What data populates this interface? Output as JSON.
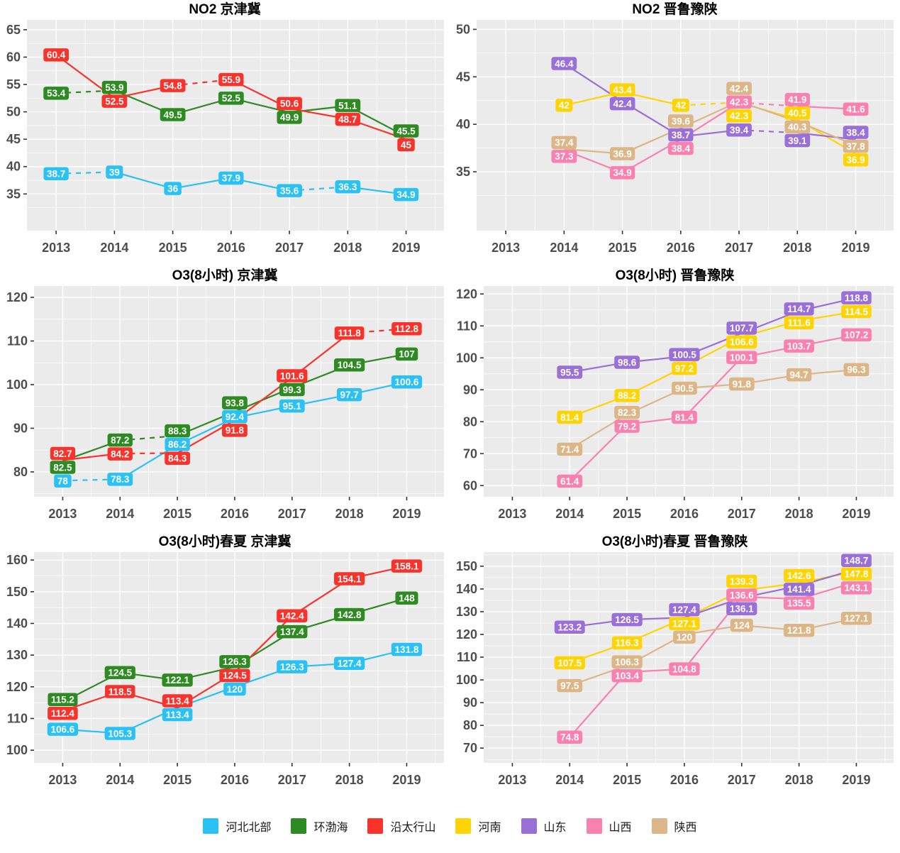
{
  "legend": {
    "items": [
      {
        "label": "河北北部",
        "slug": "hebei-north",
        "color": "#2AC2F5"
      },
      {
        "label": "环渤海",
        "slug": "huanbohai",
        "color": "#2E8B22"
      },
      {
        "label": "沿太行山",
        "slug": "yan-taihangshan",
        "color": "#F8332C"
      },
      {
        "label": "河南",
        "slug": "henan",
        "color": "#FFD404"
      },
      {
        "label": "山东",
        "slug": "shandong",
        "color": "#9A6FD8"
      },
      {
        "label": "山西",
        "slug": "shanxi",
        "color": "#FA80AF"
      },
      {
        "label": "陕西",
        "slug": "shaanxi",
        "color": "#DDB687"
      }
    ]
  },
  "chart_data": [
    {
      "type": "line",
      "title": "NO2 京津冀",
      "x": [
        2013,
        2014,
        2015,
        2016,
        2017,
        2018,
        2019
      ],
      "yticks": [
        35,
        40,
        45,
        50,
        55,
        60,
        65
      ],
      "ylim": [
        28.3,
        66.8
      ],
      "grid": true,
      "series": [
        {
          "name": "河北北部",
          "values": [
            38.7,
            39,
            36,
            37.9,
            35.6,
            36.3,
            34.9
          ],
          "dashed_segments": [
            0,
            4
          ]
        },
        {
          "name": "环渤海",
          "values": [
            53.4,
            53.9,
            49.5,
            52.5,
            49.9,
            51.1,
            45.5
          ],
          "dashed_segments": [
            0
          ]
        },
        {
          "name": "沿太行山",
          "values": [
            60.4,
            52.5,
            54.8,
            55.9,
            50.6,
            48.7,
            45
          ],
          "dashed_segments": [
            2
          ]
        }
      ]
    },
    {
      "type": "line",
      "title": "NO2 晋鲁豫陕",
      "x": [
        2013,
        2014,
        2015,
        2016,
        2017,
        2018,
        2019
      ],
      "yticks": [
        35,
        40,
        45,
        50
      ],
      "ylim": [
        28.8,
        51.0
      ],
      "grid": true,
      "series": [
        {
          "name": "河南",
          "values": [
            null,
            42,
            43.4,
            42,
            42.3,
            40.5,
            36.9
          ],
          "dashed_segments": [
            3
          ]
        },
        {
          "name": "山东",
          "values": [
            null,
            46.4,
            42.4,
            38.7,
            39.4,
            39.1,
            38.4
          ],
          "dashed_segments": [
            4
          ]
        },
        {
          "name": "山西",
          "values": [
            null,
            37.3,
            34.9,
            38.4,
            42.3,
            41.9,
            41.6
          ],
          "dashed_segments": [
            4
          ]
        },
        {
          "name": "陕西",
          "values": [
            null,
            37.4,
            36.9,
            39.6,
            42.4,
            40.3,
            37.8
          ],
          "dashed_segments": []
        }
      ]
    },
    {
      "type": "line",
      "title": "O3(8小时) 京津冀",
      "x": [
        2013,
        2014,
        2015,
        2016,
        2017,
        2018,
        2019
      ],
      "yticks": [
        80,
        90,
        100,
        110,
        120
      ],
      "ylim": [
        74.3,
        122.6
      ],
      "grid": true,
      "series": [
        {
          "name": "河北北部",
          "values": [
            78,
            78.3,
            86.2,
            92.4,
            95.1,
            97.7,
            100.6
          ],
          "dashed_segments": [
            0
          ]
        },
        {
          "name": "环渤海",
          "values": [
            82.5,
            87.2,
            88.3,
            93.8,
            99.3,
            104.5,
            107
          ],
          "dashed_segments": [
            1
          ]
        },
        {
          "name": "沿太行山",
          "values": [
            82.7,
            84.2,
            84.3,
            91.8,
            101.6,
            111.8,
            112.8
          ],
          "dashed_segments": [
            1,
            5
          ]
        }
      ]
    },
    {
      "type": "line",
      "title": "O3(8小时) 晋鲁豫陕",
      "x": [
        2013,
        2014,
        2015,
        2016,
        2017,
        2018,
        2019
      ],
      "yticks": [
        60,
        70,
        80,
        90,
        100,
        110,
        120
      ],
      "ylim": [
        56.5,
        122.5
      ],
      "grid": true,
      "series": [
        {
          "name": "河南",
          "values": [
            null,
            81.4,
            88.2,
            97.2,
            106.6,
            111.6,
            114.5
          ],
          "dashed_segments": []
        },
        {
          "name": "山东",
          "values": [
            null,
            95.5,
            98.6,
            100.5,
            107.7,
            114.7,
            118.8
          ],
          "dashed_segments": []
        },
        {
          "name": "山西",
          "values": [
            null,
            61.4,
            79.2,
            81.4,
            100.1,
            103.7,
            107.2
          ],
          "dashed_segments": []
        },
        {
          "name": "陕西",
          "values": [
            null,
            71.4,
            82.3,
            90.5,
            91.8,
            94.7,
            96.3
          ],
          "dashed_segments": []
        }
      ]
    },
    {
      "type": "line",
      "title": "O3(8小时)春夏 京津冀",
      "x": [
        2013,
        2014,
        2015,
        2016,
        2017,
        2018,
        2019
      ],
      "yticks": [
        100,
        110,
        120,
        130,
        140,
        150,
        160
      ],
      "ylim": [
        96.0,
        162.5
      ],
      "grid": true,
      "series": [
        {
          "name": "河北北部",
          "values": [
            106.6,
            105.3,
            113.4,
            120,
            126.3,
            127.4,
            131.8
          ],
          "dashed_segments": []
        },
        {
          "name": "环渤海",
          "values": [
            115.2,
            124.5,
            122.1,
            126.3,
            137.4,
            142.8,
            148
          ],
          "dashed_segments": []
        },
        {
          "name": "沿太行山",
          "values": [
            112.4,
            118.5,
            113.4,
            124.5,
            142.4,
            154.1,
            158.1
          ],
          "dashed_segments": []
        }
      ]
    },
    {
      "type": "line",
      "title": "O3(8小时)春夏 晋鲁豫陕",
      "x": [
        2013,
        2014,
        2015,
        2016,
        2017,
        2018,
        2019
      ],
      "yticks": [
        70,
        80,
        90,
        100,
        110,
        120,
        130,
        140,
        150
      ],
      "ylim": [
        63.5,
        156.2
      ],
      "grid": true,
      "series": [
        {
          "name": "河南",
          "values": [
            null,
            107.5,
            116.3,
            127.1,
            139.3,
            142.6,
            147.8
          ],
          "dashed_segments": []
        },
        {
          "name": "山东",
          "values": [
            null,
            123.2,
            126.5,
            127.4,
            136.1,
            141.4,
            148.7
          ],
          "dashed_segments": []
        },
        {
          "name": "山西",
          "values": [
            null,
            74.8,
            103.4,
            104.8,
            136.6,
            135.5,
            143.1
          ],
          "dashed_segments": []
        },
        {
          "name": "陕西",
          "values": [
            null,
            97.5,
            106.3,
            120,
            124,
            121.8,
            127.1
          ],
          "dashed_segments": []
        }
      ]
    }
  ],
  "style": {
    "panel_background": "#EBEBEB",
    "gridline_color": "#FFFFFF",
    "axis_text_color": "#4D4D4D",
    "title_color": "#000000"
  }
}
